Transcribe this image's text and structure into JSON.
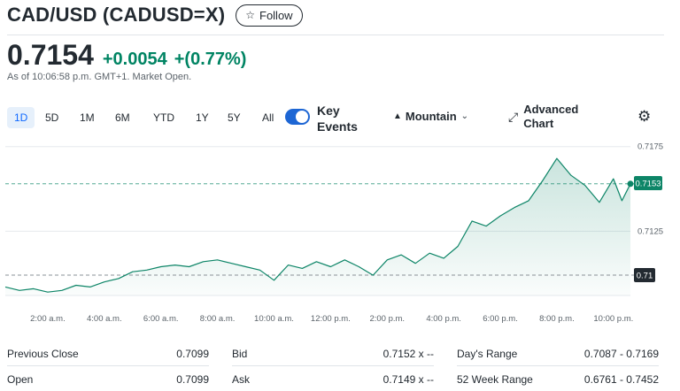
{
  "header": {
    "title": "CAD/USD (CADUSD=X)",
    "follow_label": "Follow",
    "follow_icon": "star-outline-icon"
  },
  "quote": {
    "price": "0.7154",
    "change": "+0.0054",
    "change_pct": "+(0.77%)",
    "as_of": "As of 10:06:58 p.m. GMT+1. Market Open.",
    "positive_color": "#008463"
  },
  "toolbar": {
    "ranges": [
      "1D",
      "5D",
      "1M",
      "6M",
      "YTD",
      "1Y",
      "5Y",
      "All"
    ],
    "active_range": "1D",
    "key_events_label": "Key Events",
    "key_events_on": true,
    "chart_type_label": "Mountain",
    "advanced_chart_label": "Advanced Chart"
  },
  "chart_data": {
    "type": "area",
    "x_ticks": [
      "2:00 a.m.",
      "4:00 a.m.",
      "6:00 a.m.",
      "8:00 a.m.",
      "10:00 a.m.",
      "12:00 p.m.",
      "2:00 p.m.",
      "4:00 p.m.",
      "6:00 p.m.",
      "8:00 p.m.",
      "10:00 p.m."
    ],
    "y_ticks": [
      "0.7175",
      "0.7125"
    ],
    "y_range": [
      0.7087,
      0.7178
    ],
    "x_range_hours": [
      0.5,
      22.6
    ],
    "x_hours": [
      0.5,
      1.0,
      1.5,
      2.0,
      2.5,
      3.0,
      3.5,
      4.0,
      4.5,
      5.0,
      5.5,
      6.0,
      6.5,
      7.0,
      7.5,
      8.0,
      8.5,
      9.0,
      9.5,
      10.0,
      10.5,
      11.0,
      11.5,
      12.0,
      12.5,
      13.0,
      13.5,
      14.0,
      14.5,
      15.0,
      15.5,
      16.0,
      16.5,
      17.0,
      17.5,
      18.0,
      18.5,
      19.0,
      19.5,
      20.0,
      20.5,
      21.0,
      21.5,
      22.0,
      22.3,
      22.6
    ],
    "values": [
      0.7092,
      0.709,
      0.7091,
      0.7089,
      0.709,
      0.7093,
      0.7092,
      0.7095,
      0.7097,
      0.7101,
      0.7102,
      0.7104,
      0.7105,
      0.7104,
      0.7107,
      0.7108,
      0.7106,
      0.7104,
      0.7102,
      0.7096,
      0.7105,
      0.7103,
      0.7107,
      0.7104,
      0.7108,
      0.7104,
      0.7099,
      0.7108,
      0.7111,
      0.7106,
      0.7112,
      0.7109,
      0.7116,
      0.7131,
      0.7128,
      0.7134,
      0.7139,
      0.7143,
      0.7155,
      0.7168,
      0.7158,
      0.7152,
      0.7142,
      0.7156,
      0.7143,
      0.7153
    ],
    "current_value": "0.7153",
    "previous_close_marker": "0.71",
    "previous_close_value": 0.7099,
    "current_line_value": 0.7153,
    "line_color": "#0d8567"
  },
  "stats": {
    "rows": [
      [
        {
          "label": "Previous Close",
          "value": "0.7099"
        },
        {
          "label": "Bid",
          "value": "0.7152 x --"
        },
        {
          "label": "Day's Range",
          "value": "0.7087 - 0.7169"
        }
      ],
      [
        {
          "label": "Open",
          "value": "0.7099"
        },
        {
          "label": "Ask",
          "value": "0.7149 x --"
        },
        {
          "label": "52 Week Range",
          "value": "0.6761 - 0.7452"
        }
      ]
    ]
  }
}
